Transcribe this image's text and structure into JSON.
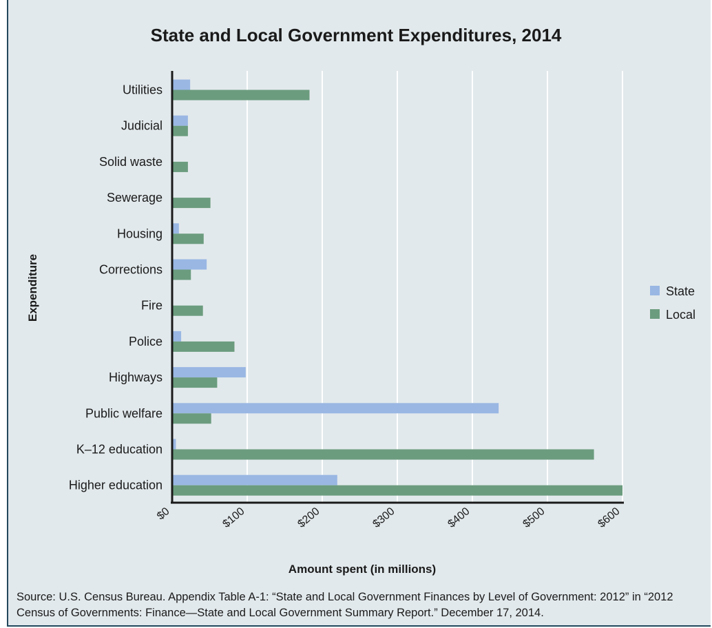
{
  "chart_data": {
    "type": "bar",
    "orientation": "horizontal",
    "title": "State and Local Government Expenditures, 2014",
    "xlabel": "Amount spent (in millions)",
    "ylabel": "Expenditure",
    "categories": [
      "Utilities",
      "Judicial",
      "Solid waste",
      "Sewerage",
      "Housing",
      "Corrections",
      "Fire",
      "Police",
      "Highways",
      "Public welfare",
      "K–12 education",
      "Higher education"
    ],
    "series": [
      {
        "name": "State",
        "color": "#9ab7e3",
        "values": [
          24,
          21,
          0,
          0,
          9,
          46,
          0,
          12,
          98,
          435,
          5,
          220
        ]
      },
      {
        "name": "Local",
        "color": "#6b9c7e",
        "values": [
          183,
          21,
          21,
          51,
          42,
          25,
          41,
          83,
          60,
          52,
          562,
          600
        ]
      }
    ],
    "xticks": [
      "$0",
      "$100",
      "$200",
      "$300",
      "$400",
      "$500",
      "$600"
    ],
    "xlim": [
      0,
      600
    ],
    "grid": true,
    "legend_position": "right"
  },
  "source_text": "Source: U.S. Census Bureau. Appendix Table A-1: “State and Local Government Finances by Level of Government: 2012” in “2012 Census of Governments: Finance—State and Local Government Summary Report.” December 17, 2014."
}
